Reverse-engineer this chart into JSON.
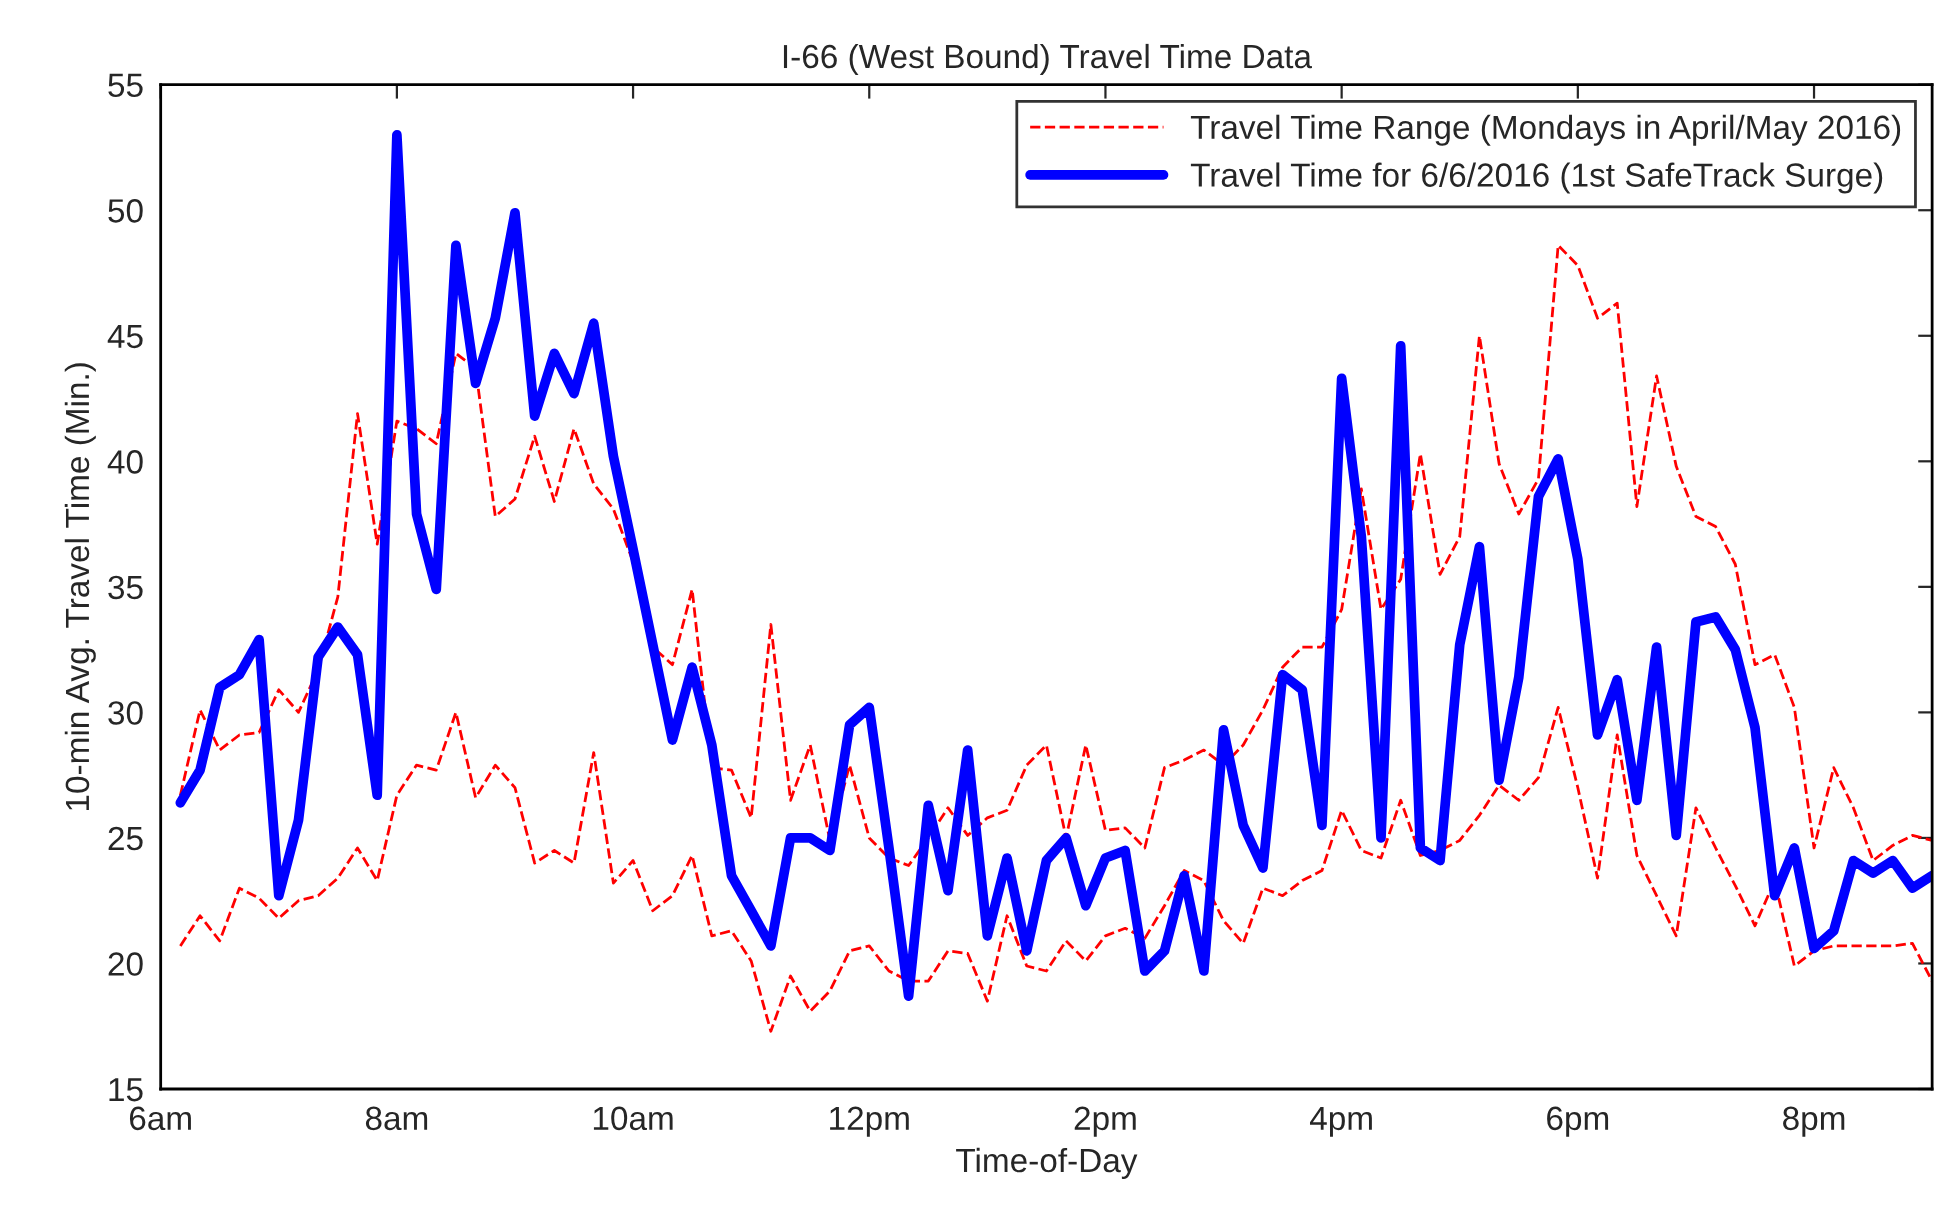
{
  "chart_data": {
    "type": "line",
    "title": "I-66 (West Bound) Travel Time Data",
    "xlabel": "Time-of-Day",
    "ylabel": "10-min Avg. Travel Time (Min.)",
    "x": [
      "2016-06-06T06:10",
      "2016-06-06T06:20",
      "2016-06-06T06:30",
      "2016-06-06T06:40",
      "2016-06-06T06:50",
      "2016-06-06T07:00",
      "2016-06-06T07:10",
      "2016-06-06T07:20",
      "2016-06-06T07:30",
      "2016-06-06T07:40",
      "2016-06-06T07:50",
      "2016-06-06T08:00",
      "2016-06-06T08:10",
      "2016-06-06T08:20",
      "2016-06-06T08:30",
      "2016-06-06T08:40",
      "2016-06-06T08:50",
      "2016-06-06T09:00",
      "2016-06-06T09:10",
      "2016-06-06T09:20",
      "2016-06-06T09:30",
      "2016-06-06T09:40",
      "2016-06-06T09:50",
      "2016-06-06T10:00",
      "2016-06-06T10:10",
      "2016-06-06T10:20",
      "2016-06-06T10:30",
      "2016-06-06T10:40",
      "2016-06-06T10:50",
      "2016-06-06T11:00",
      "2016-06-06T11:10",
      "2016-06-06T11:20",
      "2016-06-06T11:30",
      "2016-06-06T11:40",
      "2016-06-06T11:50",
      "2016-06-06T12:00",
      "2016-06-06T12:10",
      "2016-06-06T12:20",
      "2016-06-06T12:30",
      "2016-06-06T12:40",
      "2016-06-06T12:50",
      "2016-06-06T13:00",
      "2016-06-06T13:10",
      "2016-06-06T13:20",
      "2016-06-06T13:30",
      "2016-06-06T13:40",
      "2016-06-06T13:50",
      "2016-06-06T14:00",
      "2016-06-06T14:10",
      "2016-06-06T14:20",
      "2016-06-06T14:30",
      "2016-06-06T14:40",
      "2016-06-06T14:50",
      "2016-06-06T15:00",
      "2016-06-06T15:10",
      "2016-06-06T15:20",
      "2016-06-06T15:30",
      "2016-06-06T15:40",
      "2016-06-06T15:50",
      "2016-06-06T16:00",
      "2016-06-06T16:10",
      "2016-06-06T16:20",
      "2016-06-06T16:30",
      "2016-06-06T16:40",
      "2016-06-06T16:50",
      "2016-06-06T17:00",
      "2016-06-06T17:10",
      "2016-06-06T17:20",
      "2016-06-06T17:30",
      "2016-06-06T17:40",
      "2016-06-06T17:50",
      "2016-06-06T18:00",
      "2016-06-06T18:10",
      "2016-06-06T18:20",
      "2016-06-06T18:30",
      "2016-06-06T18:40",
      "2016-06-06T18:50",
      "2016-06-06T19:00",
      "2016-06-06T19:10",
      "2016-06-06T19:20",
      "2016-06-06T19:30",
      "2016-06-06T19:40",
      "2016-06-06T19:50",
      "2016-06-06T20:00",
      "2016-06-06T20:10",
      "2016-06-06T20:20",
      "2016-06-06T20:30",
      "2016-06-06T20:40",
      "2016-06-06T20:50",
      "2016-06-06T21:00"
    ],
    "series": [
      {
        "name": "Travel Time Range (Mondays in April/May 2016)",
        "color": "#ff0000",
        "line_style": "dashed",
        "values": [
          26.7,
          30.1,
          28.5,
          29.1,
          29.2,
          30.9,
          30.0,
          31.7,
          34.6,
          41.9,
          36.7,
          41.6,
          41.3,
          40.7,
          44.3,
          43.7,
          37.8,
          38.5,
          41.0,
          38.4,
          41.3,
          39.1,
          38.1,
          36.0,
          32.6,
          31.9,
          34.9,
          27.8,
          27.7,
          25.8,
          33.5,
          26.5,
          28.7,
          24.9,
          27.9,
          25.0,
          24.2,
          23.9,
          25.0,
          26.2,
          25.1,
          25.8,
          26.1,
          27.9,
          28.7,
          25.0,
          28.7,
          25.3,
          25.4,
          24.6,
          27.8,
          28.1,
          28.5,
          27.9,
          28.7,
          30.1,
          31.8,
          32.6,
          32.6,
          34.1,
          38.9,
          34.1,
          35.3,
          40.3,
          35.5,
          37.0,
          45.0,
          39.9,
          37.9,
          39.3,
          48.6,
          47.8,
          45.7,
          46.3,
          38.2,
          43.4,
          39.8,
          37.8,
          37.4,
          35.9,
          31.9,
          32.3,
          30.2,
          24.6,
          27.8,
          26.2,
          24.1,
          24.7,
          25.1,
          24.9
        ]
      },
      {
        "color": "#ff0000",
        "line_style": "dashed",
        "values": [
          20.7,
          21.9,
          20.9,
          23.0,
          22.6,
          21.8,
          22.5,
          22.7,
          23.4,
          24.6,
          23.3,
          26.7,
          27.9,
          27.7,
          30.0,
          26.6,
          27.9,
          27.0,
          24.0,
          24.5,
          24.0,
          28.4,
          23.2,
          24.1,
          22.1,
          22.7,
          24.3,
          21.1,
          21.3,
          20.1,
          17.3,
          19.5,
          18.1,
          18.9,
          20.5,
          20.7,
          19.7,
          19.3,
          19.3,
          20.5,
          20.4,
          18.5,
          21.9,
          19.9,
          19.7,
          20.9,
          20.1,
          21.1,
          21.4,
          21.0,
          22.3,
          23.7,
          23.3,
          21.7,
          20.8,
          23.0,
          22.7,
          23.3,
          23.7,
          26.1,
          24.5,
          24.2,
          26.5,
          24.3,
          24.5,
          24.9,
          25.9,
          27.1,
          26.5,
          27.4,
          30.2,
          27.0,
          23.4,
          29.1,
          24.3,
          22.7,
          21.1,
          26.2,
          24.6,
          23.1,
          21.5,
          23.3,
          19.9,
          20.5,
          20.7,
          20.7,
          20.7,
          20.7,
          20.8,
          19.3
        ]
      },
      {
        "name": "Travel Time for 6/6/2016 (1st SafeTrack Surge)",
        "color": "#0000ff",
        "line_style": "solid",
        "values": [
          26.4,
          27.7,
          31.0,
          31.5,
          32.9,
          22.7,
          25.7,
          32.2,
          33.4,
          32.3,
          26.7,
          53.0,
          37.9,
          34.9,
          48.6,
          43.1,
          45.7,
          49.9,
          41.8,
          44.3,
          42.7,
          45.5,
          40.2,
          36.5,
          32.7,
          28.9,
          31.8,
          28.7,
          23.5,
          22.1,
          20.7,
          25.0,
          25.0,
          24.5,
          29.5,
          30.2,
          24.6,
          18.7,
          26.3,
          22.9,
          28.5,
          21.1,
          24.2,
          20.5,
          24.1,
          25.0,
          22.3,
          24.2,
          24.5,
          19.7,
          20.5,
          23.5,
          19.7,
          29.3,
          25.5,
          23.8,
          31.5,
          30.9,
          25.5,
          43.3,
          37.0,
          25.0,
          44.6,
          24.6,
          24.1,
          32.7,
          36.6,
          27.3,
          31.4,
          38.6,
          40.1,
          36.1,
          29.1,
          31.3,
          26.5,
          32.6,
          25.1,
          33.6,
          33.8,
          32.5,
          29.4,
          22.7,
          24.6,
          20.6,
          21.3,
          24.1,
          23.6,
          24.1,
          23.0,
          23.5
        ]
      }
    ],
    "xlim": [
      "2016-06-06T06:00",
      "2016-06-06T21:00"
    ],
    "xticks": [
      {
        "value": "2016-06-06T06:00",
        "label": "6am"
      },
      {
        "value": "2016-06-06T08:00",
        "label": "8am"
      },
      {
        "value": "2016-06-06T10:00",
        "label": "10am"
      },
      {
        "value": "2016-06-06T12:00",
        "label": "12pm"
      },
      {
        "value": "2016-06-06T14:00",
        "label": "2pm"
      },
      {
        "value": "2016-06-06T16:00",
        "label": "4pm"
      },
      {
        "value": "2016-06-06T18:00",
        "label": "6pm"
      },
      {
        "value": "2016-06-06T20:00",
        "label": "8pm"
      }
    ],
    "ylim": [
      15,
      55
    ],
    "yticks": [
      15,
      20,
      25,
      30,
      35,
      40,
      45,
      50,
      55
    ],
    "grid": false,
    "legend": "top right"
  }
}
